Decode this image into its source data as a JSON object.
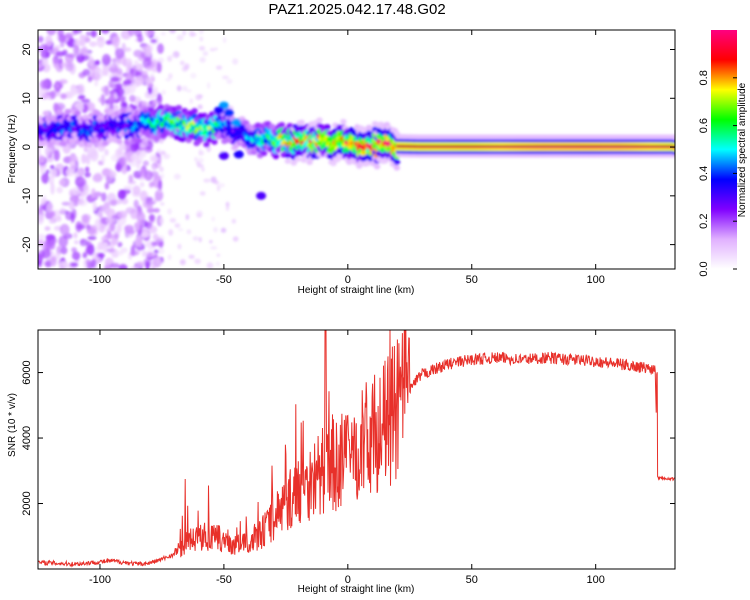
{
  "title": "PAZ1.2025.042.17.48.G02",
  "chart_data": [
    {
      "type": "heatmap",
      "xlabel": "Height of straight line (km)",
      "ylabel": "Frequency (Hz)",
      "xlim": [
        -125,
        132
      ],
      "ylim": [
        -25,
        24
      ],
      "xticks": [
        -100,
        -50,
        0,
        50,
        100
      ],
      "yticks": [
        -20,
        -10,
        0,
        10,
        20
      ],
      "colorbar": {
        "label": "Normalized spectral amplitude",
        "range": [
          0,
          1
        ],
        "ticks": [
          "0.0",
          "0.2",
          "0.4",
          "0.6",
          "0.8"
        ],
        "colors": [
          "#ffffff",
          "#e0b0ff",
          "#8000ff",
          "#0000ff",
          "#00ffff",
          "#00ff00",
          "#ffff00",
          "#ff0000",
          "#ff0080"
        ]
      },
      "ridge": {
        "note_values": "dominant frequency (Hz) vs height (km), amplitude 0-1",
        "x": [
          -125,
          -115,
          -105,
          -95,
          -85,
          -75,
          -65,
          -55,
          -50,
          -45,
          -40,
          -35,
          -30,
          -25,
          -20,
          -15,
          -10,
          -5,
          0,
          5,
          10,
          20,
          30,
          50,
          80,
          110,
          132
        ],
        "freq": [
          3.5,
          4.0,
          3.8,
          4.2,
          4.5,
          5.0,
          4.5,
          3.5,
          4.5,
          3.0,
          2.0,
          1.5,
          1.5,
          1.0,
          1.2,
          1.0,
          1.5,
          0.5,
          0.8,
          0.5,
          0.5,
          0.3,
          0.2,
          0.2,
          0.2,
          0.2,
          0.2
        ],
        "amplitude": [
          0.35,
          0.4,
          0.4,
          0.35,
          0.45,
          0.6,
          0.65,
          0.65,
          0.45,
          0.4,
          0.45,
          0.55,
          0.6,
          0.75,
          0.8,
          0.8,
          0.75,
          0.85,
          0.85,
          0.9,
          0.9,
          0.95,
          0.95,
          0.95,
          0.98,
          0.98,
          0.95
        ]
      }
    },
    {
      "type": "line",
      "xlabel": "Height of straight line (km)",
      "ylabel": "SNR (10 * v/v)",
      "xlim": [
        -125,
        132
      ],
      "ylim": [
        0,
        7300
      ],
      "xticks": [
        -100,
        -50,
        0,
        50,
        100
      ],
      "yticks": [
        2000,
        4000,
        6000
      ],
      "color": "#e8302a",
      "series": [
        {
          "x": [
            -125,
            -110,
            -95,
            -85,
            -80,
            -75,
            -70,
            -65,
            -60,
            -55,
            -50,
            -45,
            -40,
            -35,
            -30,
            -25,
            -20,
            -15,
            -10,
            -5,
            0,
            5,
            10,
            15,
            20,
            25,
            30,
            40,
            50,
            60,
            70,
            80,
            90,
            100,
            110,
            120,
            124,
            125,
            126,
            132
          ],
          "values": [
            200,
            150,
            250,
            150,
            180,
            300,
            450,
            800,
            1000,
            950,
            900,
            700,
            850,
            1100,
            1500,
            2000,
            2400,
            2700,
            3000,
            3200,
            3400,
            3800,
            4100,
            4400,
            4900,
            5500,
            5950,
            6250,
            6400,
            6450,
            6400,
            6450,
            6400,
            6350,
            6250,
            6150,
            6100,
            2800,
            2800,
            2750
          ]
        }
      ]
    }
  ]
}
